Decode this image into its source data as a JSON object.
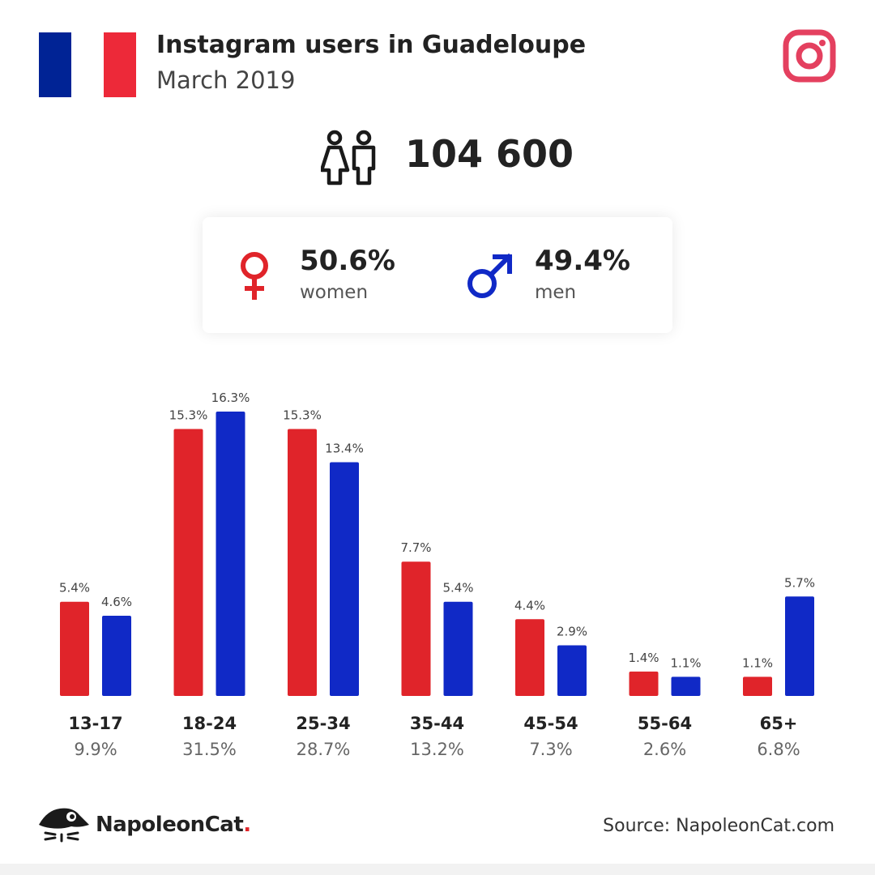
{
  "header": {
    "title": "Instagram users in Guadeloupe",
    "subtitle": "March 2019",
    "flag_colors": [
      "#002395",
      "#ffffff",
      "#ed2939"
    ],
    "platform_icon": "instagram-icon"
  },
  "total": {
    "value": "104 600",
    "icon": "people-icon"
  },
  "gender": {
    "women": {
      "pct": "50.6%",
      "label": "women",
      "icon": "female-icon",
      "color": "#e0242a"
    },
    "men": {
      "pct": "49.4%",
      "label": "men",
      "icon": "male-icon",
      "color": "#1029c6"
    }
  },
  "chart_data": {
    "type": "bar",
    "categories": [
      "13-17",
      "18-24",
      "25-34",
      "35-44",
      "45-54",
      "55-64",
      "65+"
    ],
    "category_totals": [
      "9.9%",
      "31.5%",
      "28.7%",
      "13.2%",
      "7.3%",
      "2.6%",
      "6.8%"
    ],
    "series": [
      {
        "values": [
          5.4,
          15.3,
          15.3,
          7.7,
          4.4,
          1.4,
          1.1
        ],
        "labels": [
          "5.4%",
          "15.3%",
          "15.3%",
          "7.7%",
          "4.4%",
          "1.4%",
          "1.1%"
        ],
        "color": "#e0242a"
      },
      {
        "values": [
          4.6,
          16.3,
          13.4,
          5.4,
          2.9,
          1.1,
          5.7
        ],
        "labels": [
          "4.6%",
          "16.3%",
          "13.4%",
          "5.4%",
          "2.9%",
          "1.1%",
          "5.7%"
        ],
        "color": "#1029c6"
      }
    ],
    "ylim": [
      0,
      16.3
    ],
    "grid": false
  },
  "footer": {
    "brand": "NapoleonCat",
    "brand_dot": ".",
    "brand_icon": "napoleoncat-logo-icon",
    "source": "Source: NapoleonCat.com"
  }
}
